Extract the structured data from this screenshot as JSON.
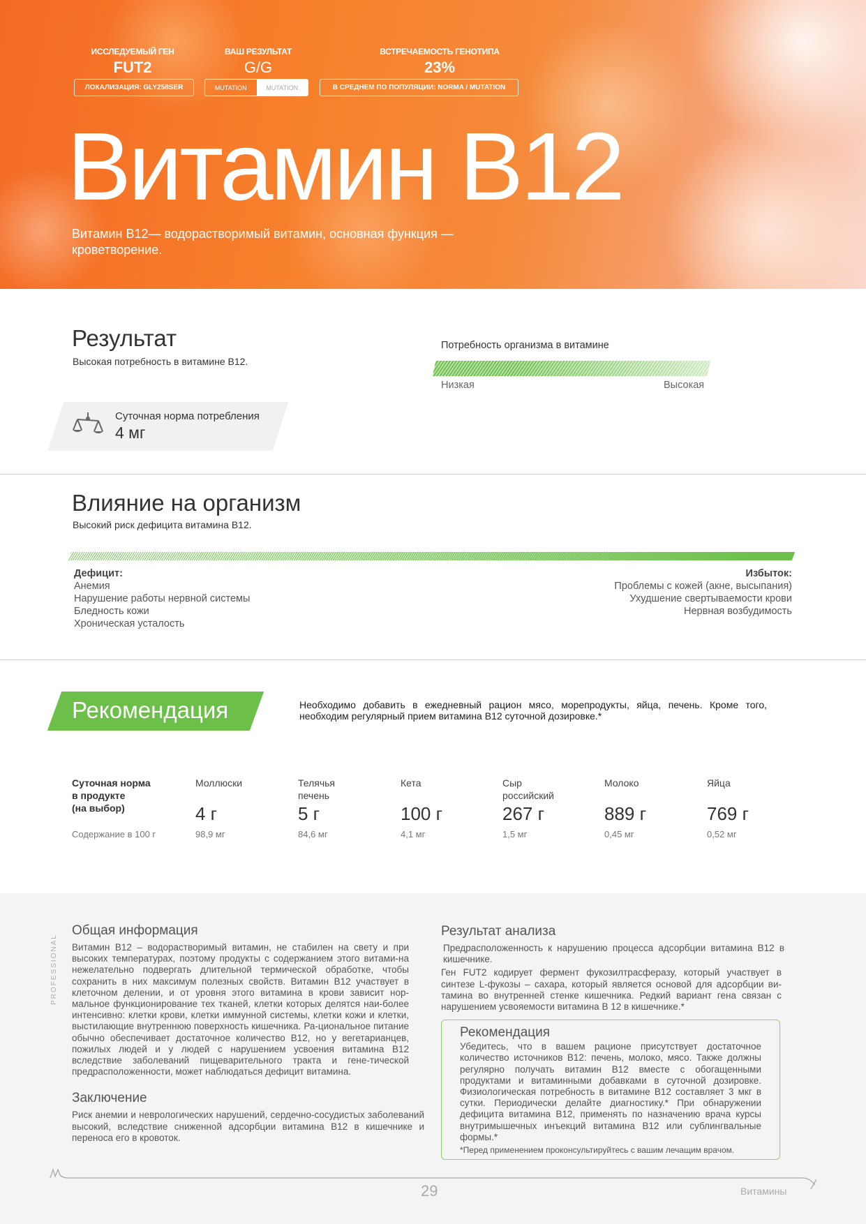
{
  "header": {
    "gene_label": "ИССЛЕДУЕМЫЙ ГЕН",
    "gene_value": "FUT2",
    "localization": "ЛОКАЛИЗАЦИЯ:  GLY258SER",
    "result_label": "ВАШ РЕЗУЛЬТАТ",
    "result_value": "G/G",
    "toggle": [
      "MUTATION",
      "MUTATION"
    ],
    "freq_label": "ВСТРЕЧАЕМОСТЬ ГЕНОТИПА",
    "freq_value": "23%",
    "population": "В СРЕДНЕМ ПО ПОПУЛЯЦИИ: NORMA / MUTATION"
  },
  "title": "Витамин В12",
  "subtitle": "Витамин В12— водорастворимый витамин, основная функция — кроветворение.",
  "result": {
    "heading": "Результат",
    "text": "Высокая потребность в витамине В12.",
    "need_label": "Потребность организма в витамине",
    "need_low": "Низкая",
    "need_high": "Высокая",
    "need_level_percent": 100,
    "norm_label": "Суточная норма потребления",
    "norm_value": "4 мг",
    "norm_icon": "scales-icon"
  },
  "influence": {
    "heading": "Влияние на организм",
    "text": "Высокий риск дефицита витамина В12.",
    "deficit_title": "Дефицит:",
    "deficit": [
      "Анемия",
      "Нарушение работы нервной системы",
      "Бледность кожи",
      "Хроническая усталость"
    ],
    "excess_title": "Избыток:",
    "excess": [
      "Проблемы с кожей (акне, высыпания)",
      "Ухудшение свертываемости крови",
      "Нервная возбудимость"
    ]
  },
  "recommendation": {
    "heading": "Рекомендация",
    "text": "Необходимо добавить в ежедневный рацион мясо, морепродукты, яйца, печень. Кроме того, необходим регулярный прием витамина В12 суточной дозировке.*"
  },
  "products": {
    "row_label": "Суточная норма\nв продукте\n(на выбор)",
    "content_label": "Содержание в 100 г",
    "items": [
      {
        "name": "Моллюски",
        "amount": "4 г",
        "content": "98,9 мг"
      },
      {
        "name": "Телячья\nпечень",
        "amount": "5 г",
        "content": "84,6 мг"
      },
      {
        "name": "Кета",
        "amount": "100 г",
        "content": "4,1 мг"
      },
      {
        "name": "Сыр\nроссийский",
        "amount": "267 г",
        "content": "1,5 мг"
      },
      {
        "name": "Молоко",
        "amount": "889 г",
        "content": "0,45 мг"
      },
      {
        "name": "Яйца",
        "amount": "769 г",
        "content": "0,52 мг"
      }
    ]
  },
  "general": {
    "heading": "Общая информация",
    "text": "Витамин В12 – водорастворимый витамин, не стабилен на свету и при высоких температурах, поэтому продукты с содержанием этого витами-на нежелательно подвергать длительной термической обработке, чтобы сохранить в них максимум полезных свойств. Витамин В12 участвует в клеточном делении, и от уровня этого витамина в крови зависит нор-мальное функционирование тех тканей, клетки которых делятся наи-более интенсивно: клетки крови, клетки иммунной системы, клетки кожи и клетки, выстилающие внутреннюю поверхность кишечника. Ра-циональное питание обычно обеспечивает достаточное количество В12, но у вегетарианцев, пожилых людей и у людей с нарушением усвоения витамина В12 вследствие заболеваний пищеварительного тракта и гене-тической предрасположенности, может наблюдаться дефицит витамина."
  },
  "conclusion": {
    "heading": "Заключение",
    "text": "Риск анемии и неврологических нарушений, сердечно-сосудистых заболеваний высокий, вследствие сниженной адсорбции витамина В12 в кишечнике и переноса его в кровоток."
  },
  "analysis": {
    "heading": "Результат анализа",
    "text1": "Предрасположенность к нарушению процесса адсорбции витамина В12 в кишечнике.",
    "text2": "Ген FUT2 кодирует фермент фукозилтрасферазу, который участвует в синтезе L-фукозы – сахара, который является основой для адсорбции ви-тамина во внутренней стенке кишечника. Редкий вариант гена связан с нарушением усвояемости витамина В 12 в кишечнике.*"
  },
  "rec_box": {
    "heading": "Рекомендация",
    "text": "Убедитесь, что в вашем рационе присутствует достаточное количество источников В12: печень, молоко, мясо. Также должны регулярно получать витамин В12 вместе с обогащенными продуктами и витаминными добавками в суточной дозировке. Физиологическая потребность в витамине В12 составляет 3 мкг в сутки. Периодически делайте диагностику.* При обнаружении дефицита витамина В12, применять по назначению врача курсы внутримышечных инъекций витамина В12 или сублингвальные формы.*",
    "note": "*Перед применением проконсультируйтесь с вашим лечащим врачом."
  },
  "footer": {
    "side_label": "PROFESSIONAL",
    "page": "29",
    "section": "Витамины"
  },
  "colors": {
    "accent": "#6cc04a",
    "hero": "#f47a2c",
    "grey_bg": "#f4f4f4"
  }
}
